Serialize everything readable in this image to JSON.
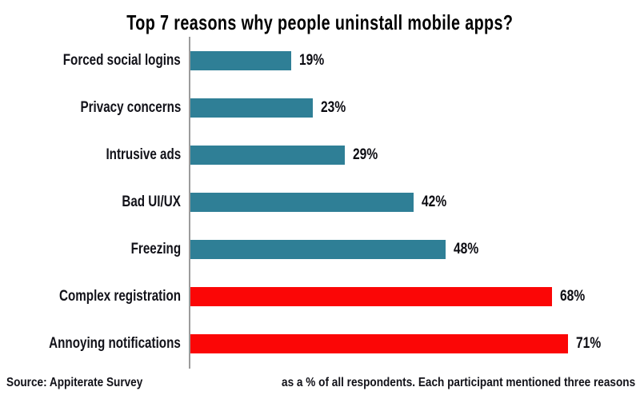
{
  "title": "Top 7 reasons why people uninstall mobile apps?",
  "chart_data": {
    "type": "bar",
    "orientation": "horizontal",
    "title": "Top 7 reasons why people uninstall mobile apps?",
    "categories": [
      "Forced social logins",
      "Privacy concerns",
      "Intrusive ads",
      "Bad UI/UX",
      "Freezing",
      "Complex registration",
      "Annoying notifications"
    ],
    "values": [
      19,
      23,
      29,
      42,
      48,
      68,
      71
    ],
    "value_labels": [
      "19%",
      "23%",
      "29%",
      "42%",
      "48%",
      "68%",
      "71%"
    ],
    "bar_colors": [
      "#2F7F96",
      "#2F7F96",
      "#2F7F96",
      "#2F7F96",
      "#2F7F96",
      "#FB0606",
      "#FB0606"
    ],
    "palette": {
      "teal": "#2F7F96",
      "red": "#FB0606"
    },
    "axis_color": "#9B9B9B",
    "xlim": [
      0,
      75
    ],
    "grid": "off",
    "legend": "none",
    "value_label_position": "outside-end"
  },
  "footer": {
    "source": "Source: Appiterate Survey",
    "note": "as a % of all respondents. Each participant mentioned three reasons"
  }
}
